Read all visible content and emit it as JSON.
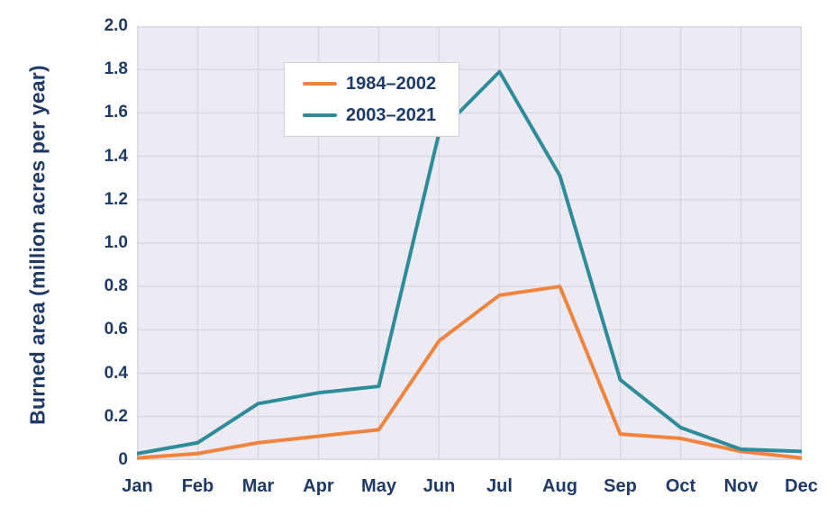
{
  "chart_data": {
    "type": "line",
    "ylabel": "Burned area (million acres per year)",
    "categories": [
      "Jan",
      "Feb",
      "Mar",
      "Apr",
      "May",
      "Jun",
      "Jul",
      "Aug",
      "Sep",
      "Oct",
      "Nov",
      "Dec"
    ],
    "series": [
      {
        "name": "1984–2002",
        "color": "#F0843F",
        "values": [
          0.01,
          0.03,
          0.08,
          0.11,
          0.14,
          0.55,
          0.76,
          0.8,
          0.12,
          0.1,
          0.04,
          0.01
        ]
      },
      {
        "name": "2003–2021",
        "color": "#2E8B9A",
        "values": [
          0.03,
          0.08,
          0.26,
          0.31,
          0.34,
          1.51,
          1.79,
          1.31,
          0.37,
          0.15,
          0.05,
          0.04
        ]
      }
    ],
    "ylim": [
      0,
      2.0
    ],
    "ytick_step": 0.2,
    "yticks": [
      "2.0",
      "1.8",
      "1.6",
      "1.4",
      "1.2",
      "1.0",
      "0.8",
      "0.6",
      "0.4",
      "0.2",
      "0"
    ],
    "grid": true,
    "legend_position": "top-left",
    "style": {
      "text_color": "#1F3A67",
      "plot_background": "#ECEBF4",
      "grid_color": "#D9D8E0",
      "line_width": 4
    }
  }
}
